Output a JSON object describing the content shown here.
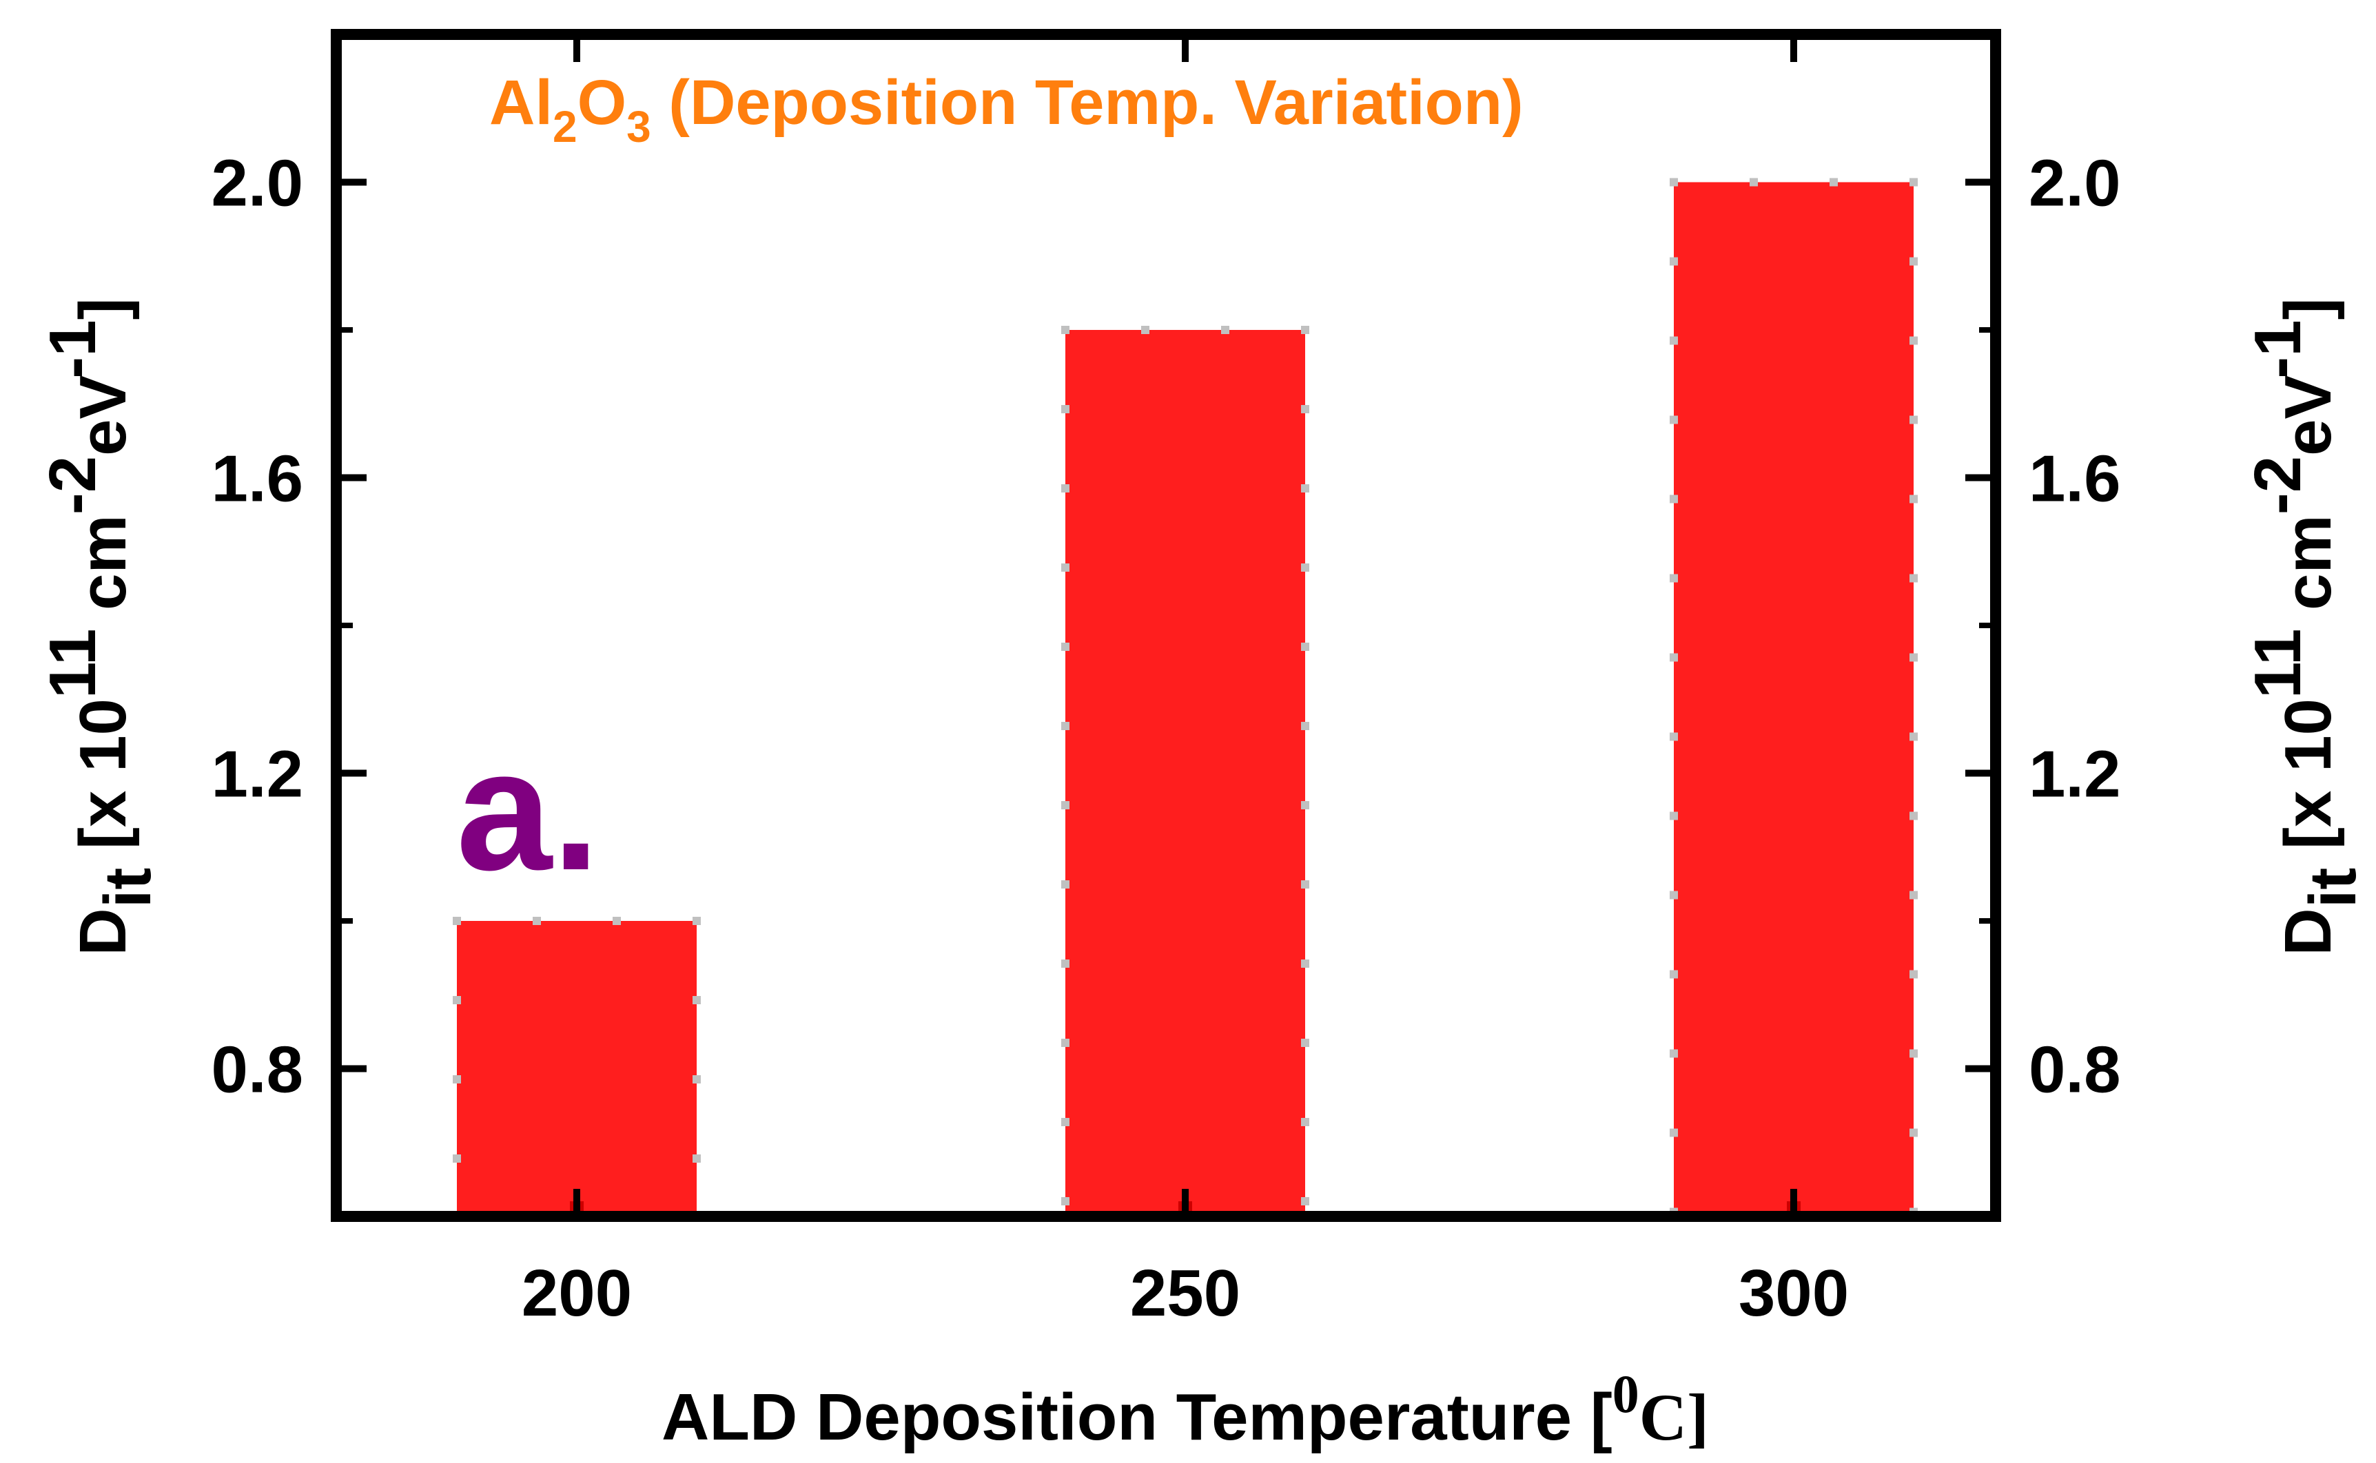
{
  "chart_data": {
    "type": "bar",
    "title": {
      "base": "Al",
      "sub1": "2",
      "mid": "O",
      "sub2": "3",
      "rest": " (Deposition Temp. Variation)"
    },
    "panel_label": "a.",
    "categories": [
      "200",
      "250",
      "300"
    ],
    "series": [
      {
        "values": [
          1.0,
          1.8,
          2.0
        ],
        "color": "#ff1e1e"
      }
    ],
    "xlabel": {
      "text": "ALD Deposition Temperature [",
      "sup": "0",
      "unit": "C]"
    },
    "ylabel": {
      "main": "D",
      "sub": "it",
      "mid": " [x 10",
      "sup1": "11",
      "mid2": " cm",
      "sup2": "-2",
      "mid3": "eV",
      "sup3": "-1",
      "end": "]"
    },
    "ylabel_right": {
      "main": "D",
      "sub": "it",
      "mid": " [x 10",
      "sup1": "11",
      "mid2": " cm",
      "sup2": "-2",
      "mid3": "eV",
      "sup3": "-1",
      "end": "]"
    },
    "yticks": [
      "0.8",
      "1.2",
      "1.6",
      "2.0"
    ],
    "ytick_values": [
      0.8,
      1.2,
      1.6,
      2.0
    ],
    "yticks_right": [
      "0.8",
      "1.2",
      "1.6",
      "2.0"
    ],
    "ylim": [
      0.6,
      2.2
    ],
    "grid": false,
    "legend": "none",
    "colors": {
      "bar": "#ff1e1e",
      "bar_dots": "#c0c0c0",
      "title": "#ff7f0e",
      "panel_label": "#800080",
      "axes": "#000000"
    }
  }
}
